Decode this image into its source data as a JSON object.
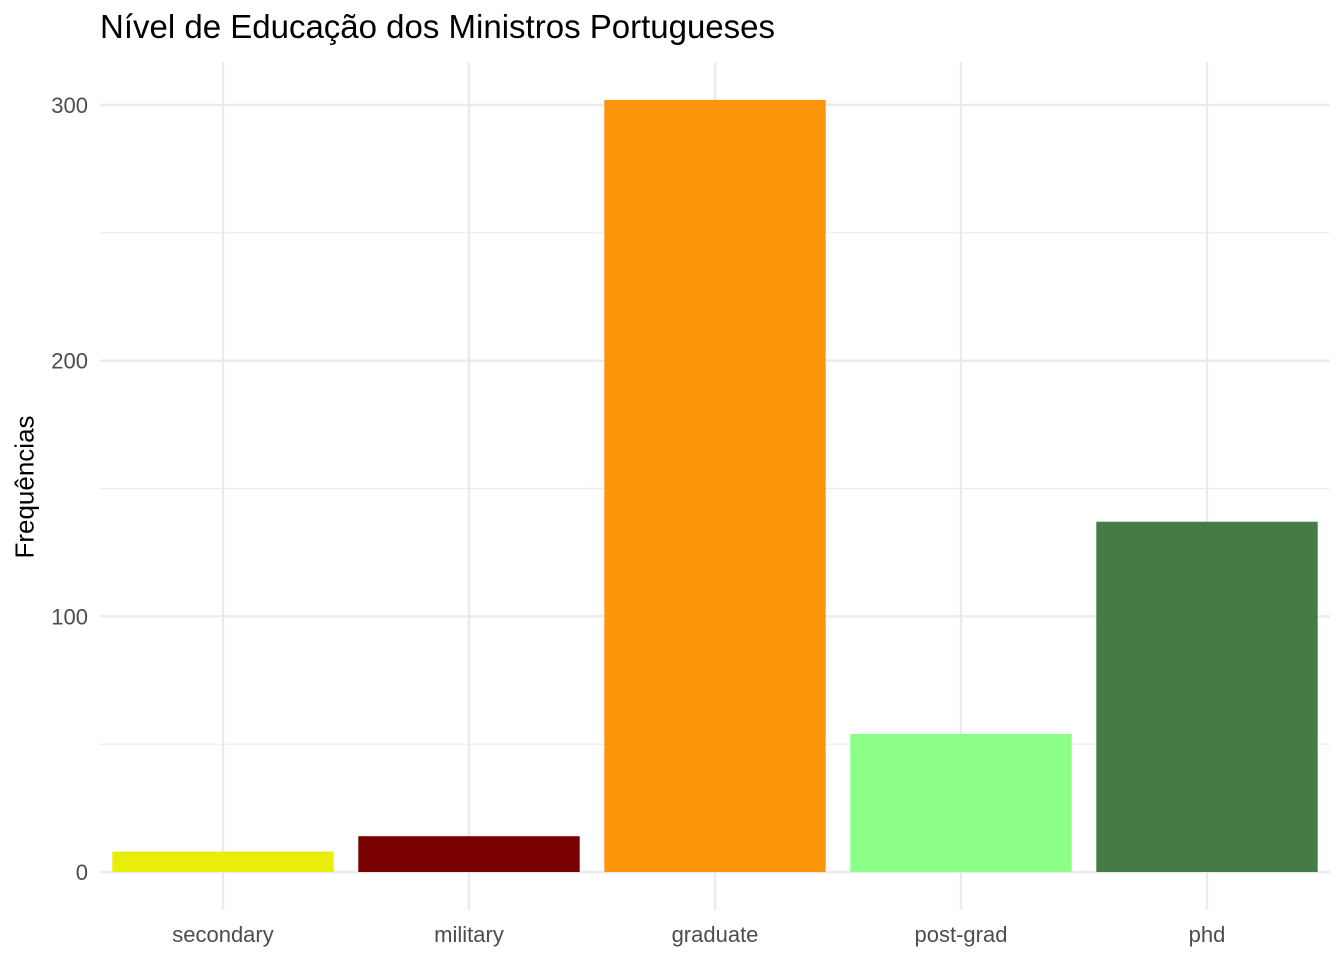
{
  "chart_data": {
    "type": "bar",
    "title": "Nível de Educação dos Ministros Portugueses",
    "xlabel": "",
    "ylabel": "Frequências",
    "categories": [
      "secondary",
      "military",
      "graduate",
      "post-grad",
      "phd"
    ],
    "values": [
      8,
      14,
      302,
      54,
      137
    ],
    "colors": [
      "#e8ee0a",
      "#780000",
      "#fd950a",
      "#8cff86",
      "#457c45"
    ],
    "ylim": [
      -8,
      317
    ],
    "yticks": [
      0,
      100,
      200,
      300
    ],
    "yticks_minor": [
      50,
      150,
      250
    ],
    "grid": true,
    "legend": "none",
    "background": "#ffffff",
    "grid_color": "#ebebeb"
  }
}
